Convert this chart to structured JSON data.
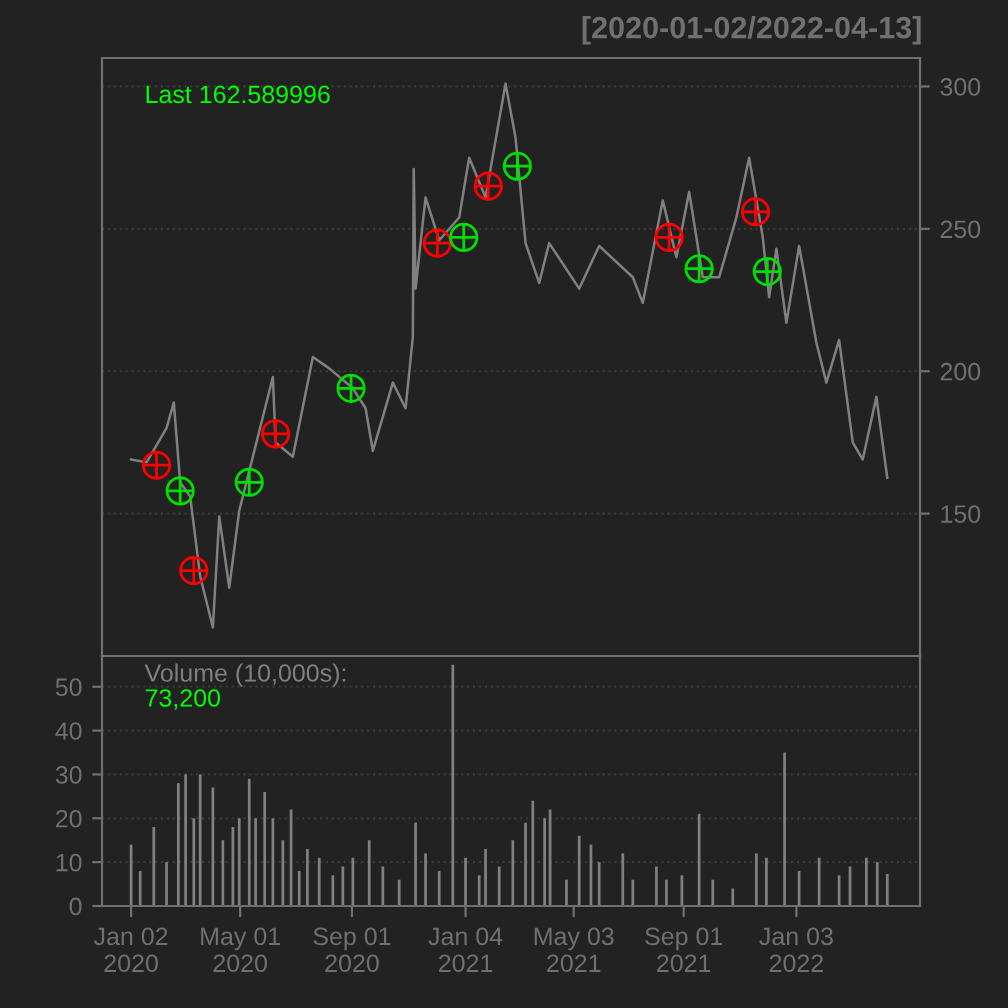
{
  "chart_data": [
    {
      "type": "line",
      "title": "[2020-01-02/2022-04-13]",
      "annotations": [
        "Last 162.589996"
      ],
      "xlim": [
        "2019-12-01",
        "2022-05-19"
      ],
      "xticks": [
        {
          "value": "2020-01-02",
          "label": null
        },
        {
          "value": "2020-05-01",
          "label": null
        },
        {
          "value": "2020-09-01",
          "label": null
        },
        {
          "value": "2021-01-04",
          "label": null
        },
        {
          "value": "2021-05-03",
          "label": null
        },
        {
          "value": "2021-09-01",
          "label": null
        },
        {
          "value": "2022-01-03",
          "label": null
        }
      ],
      "ylim": [
        100,
        310
      ],
      "yticks": [
        150,
        200,
        250,
        300
      ],
      "grid": "y",
      "tick_labels": "y",
      "series": [
        {
          "type": "line",
          "color": "#808080",
          "x": [
            "2020-01-02",
            "2020-01-19",
            "2020-02-10",
            "2020-02-18",
            "2020-02-25",
            "2020-03-07",
            "2020-03-18",
            "2020-04-01",
            "2020-04-08",
            "2020-04-19",
            "2020-04-30",
            "2020-05-15",
            "2020-06-06",
            "2020-06-09",
            "2020-06-28",
            "2020-07-20",
            "2020-08-07",
            "2020-09-02",
            "2020-09-16",
            "2020-09-24",
            "2020-10-16",
            "2020-10-30",
            "2020-11-07",
            "2020-11-08",
            "2020-11-10",
            "2020-11-21",
            "2020-12-06",
            "2020-12-28",
            "2021-01-08",
            "2021-01-26",
            "2021-02-17",
            "2021-02-28",
            "2021-03-11",
            "2021-03-26",
            "2021-04-06",
            "2021-05-09",
            "2021-05-31",
            "2021-07-07",
            "2021-07-18",
            "2021-08-09",
            "2021-08-24",
            "2021-09-07",
            "2021-09-22",
            "2021-10-10",
            "2021-10-29",
            "2021-11-12",
            "2021-11-27",
            "2021-12-04",
            "2021-12-12",
            "2021-12-23",
            "2022-01-06",
            "2022-01-25",
            "2022-02-05",
            "2022-02-19",
            "2022-03-06",
            "2022-03-17",
            "2022-04-01",
            "2022-04-13"
          ],
          "values": [
            169,
            168,
            180,
            189,
            161,
            156,
            128,
            110,
            149,
            124,
            151,
            170,
            198,
            175,
            170,
            205,
            201,
            194,
            187,
            172,
            196,
            187,
            212,
            271,
            229,
            261,
            246,
            254,
            275,
            261,
            301,
            282,
            245,
            231,
            245,
            229,
            244,
            233,
            224,
            260,
            240,
            263,
            233,
            233,
            254,
            275,
            247,
            226,
            243,
            217,
            244,
            210,
            196,
            211,
            175,
            169,
            191,
            162.6
          ]
        },
        {
          "type": "scatter",
          "color": "#ff0000",
          "marker": "cross",
          "x": [
            "2020-01-30",
            "2020-03-11",
            "2020-06-09",
            "2020-12-04",
            "2021-01-29",
            "2021-08-16",
            "2021-11-19"
          ],
          "values": [
            167,
            130,
            178,
            245,
            265,
            247,
            256
          ]
        },
        {
          "type": "scatter",
          "color": "#00e000",
          "marker": "cross",
          "x": [
            "2020-02-25",
            "2020-05-11",
            "2020-08-31",
            "2021-01-02",
            "2021-03-02",
            "2021-09-18",
            "2021-12-02"
          ],
          "values": [
            158,
            161,
            194,
            247,
            272,
            236,
            235
          ]
        }
      ]
    },
    {
      "type": "bar",
      "color": "#808080",
      "annotations": [
        "Volume (10,000s):",
        "73,200"
      ],
      "x": [
        "2020-01-02",
        "2020-01-12",
        "2020-01-27",
        "2020-02-10",
        "2020-02-23",
        "2020-03-02",
        "2020-03-11",
        "2020-03-18",
        "2020-04-01",
        "2020-04-12",
        "2020-04-23",
        "2020-04-30",
        "2020-05-11",
        "2020-05-18",
        "2020-05-28",
        "2020-06-06",
        "2020-06-17",
        "2020-06-26",
        "2020-07-05",
        "2020-07-14",
        "2020-07-27",
        "2020-08-11",
        "2020-08-22",
        "2020-09-02",
        "2020-09-20",
        "2020-10-05",
        "2020-10-23",
        "2020-11-10",
        "2020-11-21",
        "2020-12-06",
        "2020-12-21",
        "2021-01-04",
        "2021-01-19",
        "2021-01-26",
        "2021-02-10",
        "2021-02-25",
        "2021-03-11",
        "2021-03-19",
        "2021-04-01",
        "2021-04-07",
        "2021-04-25",
        "2021-05-09",
        "2021-05-22",
        "2021-05-31",
        "2021-06-26",
        "2021-07-07",
        "2021-08-02",
        "2021-08-13",
        "2021-08-30",
        "2021-09-18",
        "2021-10-03",
        "2021-10-25",
        "2021-11-20",
        "2021-12-01",
        "2021-12-21",
        "2022-01-06",
        "2022-01-28",
        "2022-02-19",
        "2022-03-03",
        "2022-03-21",
        "2022-04-02",
        "2022-04-13"
      ],
      "values": [
        14,
        8,
        18,
        10,
        28,
        30,
        20,
        30,
        27,
        15,
        18,
        20,
        29,
        20,
        26,
        20,
        15,
        22,
        8,
        13,
        11,
        7,
        9,
        11,
        15,
        9,
        6,
        19,
        12,
        8,
        55,
        11,
        7,
        13,
        9,
        15,
        19,
        24,
        20,
        22,
        6,
        16,
        14,
        10,
        12,
        6,
        9,
        6,
        7,
        21,
        6,
        4,
        12,
        11,
        35,
        8,
        11,
        7,
        9,
        11,
        10,
        7.3
      ],
      "xlim": [
        "2019-12-01",
        "2022-05-19"
      ],
      "xticks": [
        {
          "value": "2020-01-02",
          "label": "Jan 02\n2020"
        },
        {
          "value": "2020-05-01",
          "label": "May 01\n2020"
        },
        {
          "value": "2020-09-01",
          "label": "Sep 01\n2020"
        },
        {
          "value": "2021-01-04",
          "label": "Jan 04\n2021"
        },
        {
          "value": "2021-05-03",
          "label": "May 03\n2021"
        },
        {
          "value": "2021-09-01",
          "label": "Sep 01\n2021"
        },
        {
          "value": "2022-01-03",
          "label": "Jan 03\n2022"
        }
      ],
      "ylim": [
        0,
        57
      ],
      "yticks": [
        0,
        10,
        20,
        30,
        40,
        50
      ],
      "grid": "y"
    }
  ]
}
